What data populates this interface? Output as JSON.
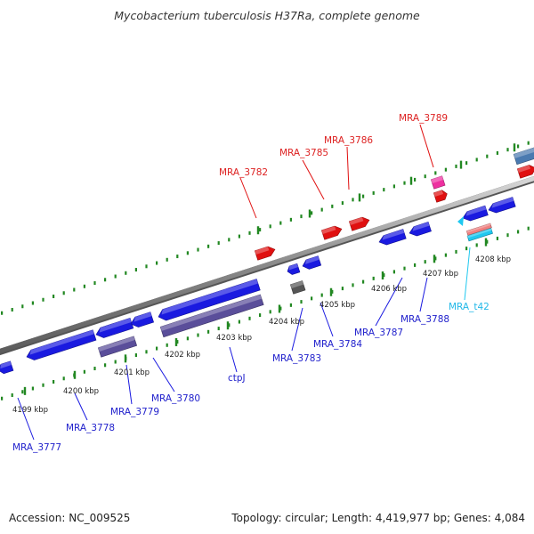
{
  "title": "Mycobacterium tuberculosis H37Ra, complete genome",
  "footer": {
    "accession": "Accession: NC_009525",
    "summary": "Topology: circular; Length: 4,419,977 bp; Genes: 4,084"
  },
  "ticks": [
    {
      "text": "4199 kbp"
    },
    {
      "text": "4200 kbp"
    },
    {
      "text": "4201 kbp"
    },
    {
      "text": "4202 kbp"
    },
    {
      "text": "4203 kbp"
    },
    {
      "text": "4204 kbp"
    },
    {
      "text": "4205 kbp"
    },
    {
      "text": "4206 kbp"
    },
    {
      "text": "4207 kbp"
    },
    {
      "text": "4208 kbp"
    }
  ],
  "labels": [
    {
      "text": "MRA_3782",
      "color": "#dd2222"
    },
    {
      "text": "MRA_3785",
      "color": "#dd2222"
    },
    {
      "text": "MRA_3786",
      "color": "#dd2222"
    },
    {
      "text": "MRA_3789",
      "color": "#dd2222"
    },
    {
      "text": "MRA_3777",
      "color": "#2222cc"
    },
    {
      "text": "MRA_3778",
      "color": "#2222cc"
    },
    {
      "text": "MRA_3779",
      "color": "#2222cc"
    },
    {
      "text": "MRA_3780",
      "color": "#2222cc"
    },
    {
      "text": "ctpJ",
      "color": "#2222cc"
    },
    {
      "text": "MRA_3783",
      "color": "#2222cc"
    },
    {
      "text": "MRA_3784",
      "color": "#2222cc"
    },
    {
      "text": "MRA_3787",
      "color": "#2222cc"
    },
    {
      "text": "MRA_3788",
      "color": "#2222cc"
    },
    {
      "text": "MRA_t42",
      "color": "#22b8e8"
    }
  ],
  "colors": {
    "backbone": "#8a8a8a",
    "tick": "#228822",
    "forward_gene": "#e01010",
    "reverse_gene": "#1a1ae0",
    "rna_gene": "#1ec8f0",
    "purple_gene": "#5a4e9a",
    "pseudo_gene": "#555555",
    "pink_gene": "#ee30a0",
    "salmon_gene": "#f08080",
    "steel_gene": "#4a7ab0"
  }
}
